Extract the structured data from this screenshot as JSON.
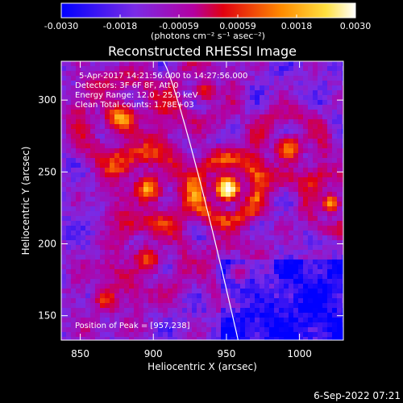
{
  "chart_data": {
    "type": "heatmap",
    "title": "Reconstructed RHESSI Image",
    "xlabel": "Heliocentric X (arcsec)",
    "ylabel": "Heliocentric Y (arcsec)",
    "xlim": [
      837,
      1030
    ],
    "ylim": [
      133,
      327
    ],
    "x_ticks": [
      850,
      900,
      950,
      1000
    ],
    "y_ticks": [
      150,
      200,
      250,
      300
    ],
    "colorbar": {
      "ticks": [
        "-0.0030",
        "-0.0018",
        "-0.00059",
        "0.00059",
        "0.0018",
        "0.0030"
      ],
      "range": [
        -0.003,
        0.003
      ],
      "units": "(photons cm⁻² s⁻¹ asec⁻²)",
      "colors": [
        "#0000ff",
        "#7a2be6",
        "#b400a0",
        "#e00010",
        "#ff8c00",
        "#ffe040",
        "#ffffff"
      ]
    },
    "annotations": [
      "5-Apr-2017 14:21:56.000 to 14:27:56.000",
      "Detectors: 3F 6F 8F, Att 0",
      "Energy Range: 12.0 - 25.0 keV",
      "Clean     Total counts: 1.78E+03",
      "Position of Peak = [957,238]"
    ],
    "limb_line_color": "#ffffff",
    "peak_position": [
      957,
      238
    ]
  },
  "footer": {
    "date": "6-Sep-2022 07:21"
  }
}
